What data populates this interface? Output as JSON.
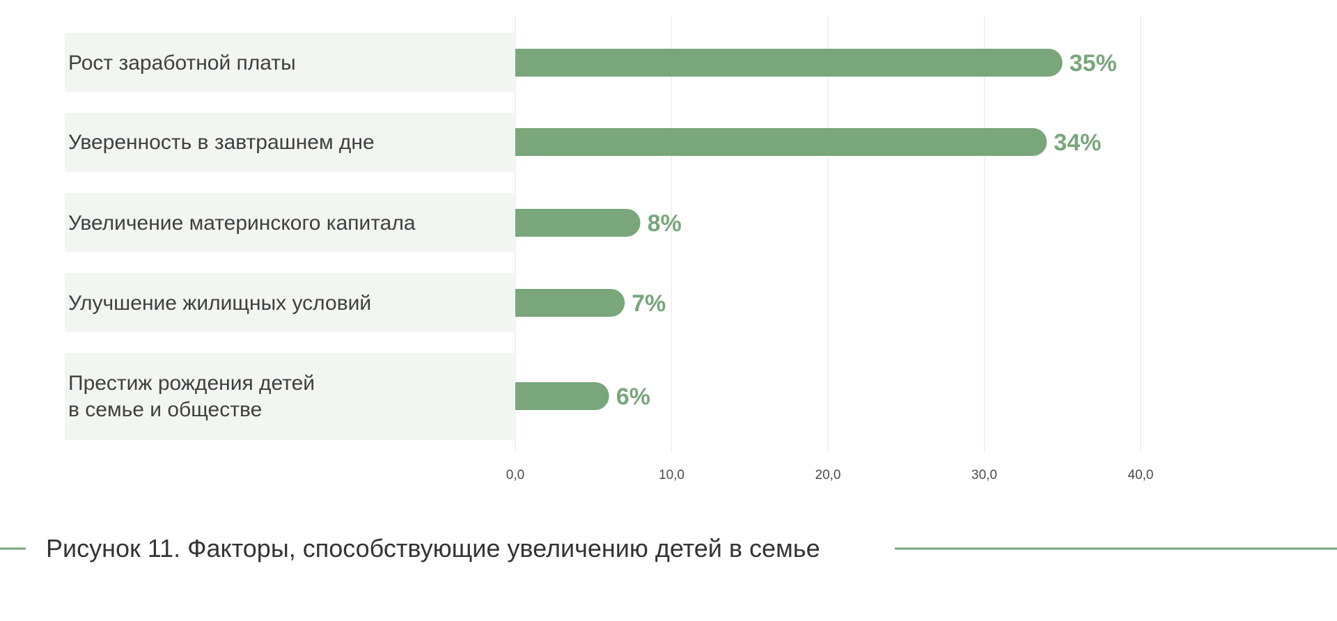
{
  "chart_data": {
    "type": "bar",
    "orientation": "horizontal",
    "categories": [
      "Рост заработной платы",
      "Уверенность в завтрашнем дне",
      "Увеличение материнского капитала",
      "Улучшение жилищных условий",
      "Престиж рождения детей\nв семье и обществе"
    ],
    "values": [
      35,
      34,
      8,
      7,
      6
    ],
    "value_labels": [
      "35%",
      "34%",
      "8%",
      "7%",
      "6%"
    ],
    "x_ticks": [
      "0,0",
      "10,0",
      "20,0",
      "30,0",
      "40,0"
    ],
    "x_tick_values": [
      0,
      10,
      20,
      30,
      40
    ],
    "xlim": [
      0,
      40
    ],
    "grid": true,
    "legend": "none",
    "title": "",
    "xlabel": "",
    "ylabel": ""
  },
  "caption": {
    "text": "Рисунок 11. Факторы, способствующие увеличению детей в семье"
  },
  "colors": {
    "bar": "#79a67b",
    "value_label": "#79a67b",
    "category_band": "#f1f6f1",
    "grid": "#e6e6e6",
    "caption_line": "#79a67b"
  }
}
